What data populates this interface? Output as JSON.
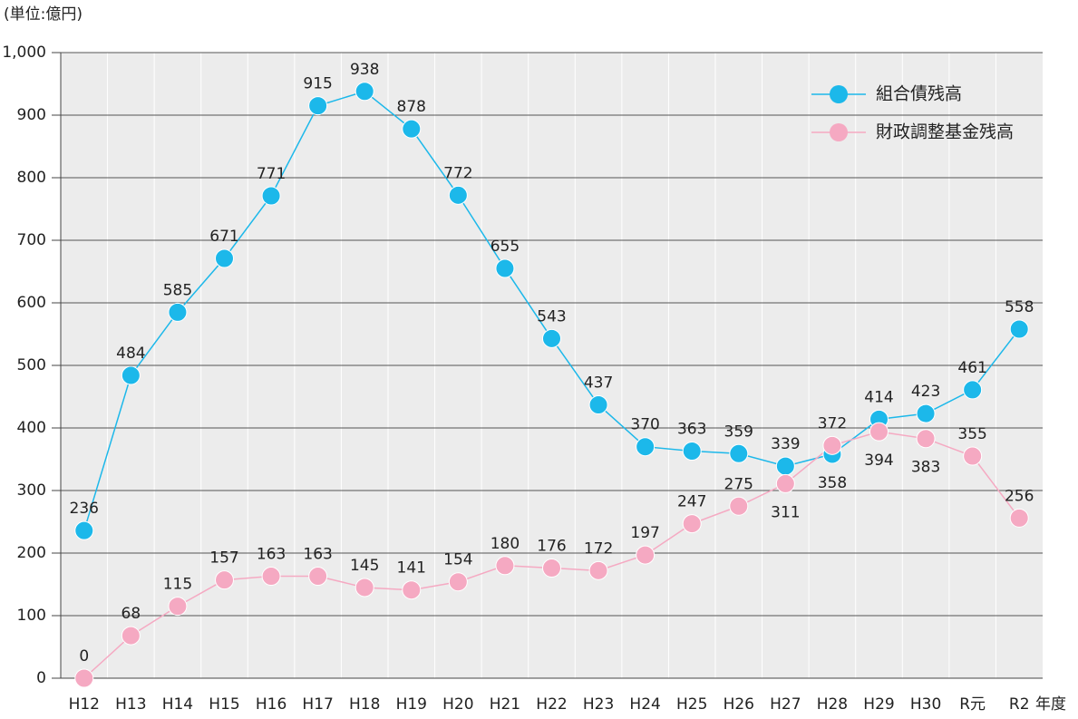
{
  "chart_data": {
    "type": "line",
    "unit_label": "(単位:億円)",
    "x_label": "年度",
    "categories": [
      "H12",
      "H13",
      "H14",
      "H15",
      "H16",
      "H17",
      "H18",
      "H19",
      "H20",
      "H21",
      "H22",
      "H23",
      "H24",
      "H25",
      "H26",
      "H27",
      "H28",
      "H29",
      "H30",
      "R元",
      "R2"
    ],
    "series": [
      {
        "name": "組合債残高",
        "color": "#1cb8ea",
        "values": [
          236,
          484,
          585,
          671,
          771,
          915,
          938,
          878,
          772,
          655,
          543,
          437,
          370,
          363,
          359,
          339,
          358,
          414,
          423,
          461,
          558
        ]
      },
      {
        "name": "財政調整基金残高",
        "color": "#f5a9c2",
        "values": [
          0,
          68,
          115,
          157,
          163,
          163,
          145,
          141,
          154,
          180,
          176,
          172,
          197,
          247,
          275,
          311,
          372,
          394,
          383,
          355,
          256
        ]
      }
    ],
    "ylim": [
      0,
      1000
    ],
    "yticks": [
      0,
      100,
      200,
      300,
      400,
      500,
      600,
      700,
      800,
      900,
      {
        "value": 1000,
        "label": "1,000"
      }
    ],
    "grid": true,
    "legend": "top-right"
  }
}
